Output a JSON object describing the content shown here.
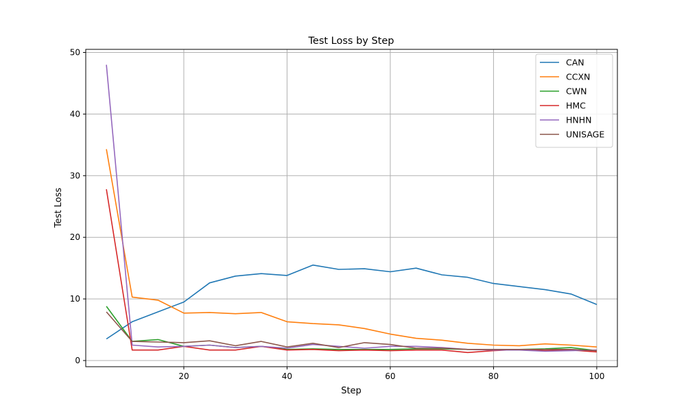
{
  "chart_data": {
    "type": "line",
    "title": "Test Loss by Step",
    "xlabel": "Step",
    "ylabel": "Test Loss",
    "xlim": [
      1,
      104
    ],
    "ylim": [
      -1,
      50.5
    ],
    "xticks": [
      20,
      40,
      60,
      80,
      100
    ],
    "yticks": [
      0,
      10,
      20,
      30,
      40,
      50
    ],
    "grid": true,
    "legend_position": "top-right",
    "x": [
      5,
      10,
      15,
      20,
      25,
      30,
      35,
      40,
      45,
      50,
      55,
      60,
      65,
      70,
      75,
      80,
      85,
      90,
      95,
      100
    ],
    "series": [
      {
        "name": "CAN",
        "color": "#1f77b4",
        "values": [
          3.5,
          6.3,
          7.9,
          9.5,
          12.6,
          13.7,
          14.1,
          13.8,
          15.5,
          14.8,
          14.9,
          14.4,
          15.0,
          13.9,
          13.5,
          12.5,
          12.0,
          11.5,
          10.8,
          9.1
        ]
      },
      {
        "name": "CCXN",
        "color": "#ff7f0e",
        "values": [
          34.3,
          10.3,
          9.8,
          7.7,
          7.8,
          7.6,
          7.8,
          6.3,
          6.0,
          5.8,
          5.2,
          4.3,
          3.6,
          3.3,
          2.8,
          2.5,
          2.4,
          2.7,
          2.5,
          2.2
        ]
      },
      {
        "name": "CWN",
        "color": "#2ca02c",
        "values": [
          8.8,
          3.1,
          3.4,
          2.3,
          2.5,
          2.1,
          2.3,
          1.8,
          1.9,
          1.8,
          1.8,
          1.8,
          1.9,
          1.9,
          1.8,
          1.8,
          1.8,
          1.9,
          2.1,
          1.6
        ]
      },
      {
        "name": "HMC",
        "color": "#d62728",
        "values": [
          27.8,
          1.7,
          1.7,
          2.3,
          1.7,
          1.7,
          2.3,
          1.7,
          1.8,
          1.6,
          1.7,
          1.6,
          1.7,
          1.7,
          1.3,
          1.6,
          1.8,
          1.6,
          1.7,
          1.4
        ]
      },
      {
        "name": "HNHN",
        "color": "#9467bd",
        "values": [
          48.0,
          2.5,
          2.2,
          2.3,
          2.5,
          2.1,
          2.3,
          2.0,
          2.6,
          2.3,
          2.0,
          2.3,
          2.3,
          2.1,
          1.8,
          1.7,
          1.7,
          1.5,
          1.6,
          1.7
        ]
      },
      {
        "name": "UNISAGE",
        "color": "#8c564b",
        "values": [
          7.9,
          3.1,
          3.0,
          2.9,
          3.2,
          2.4,
          3.1,
          2.2,
          2.8,
          2.1,
          2.9,
          2.6,
          2.0,
          2.0,
          1.8,
          1.8,
          1.8,
          1.8,
          1.8,
          1.6
        ]
      }
    ]
  }
}
